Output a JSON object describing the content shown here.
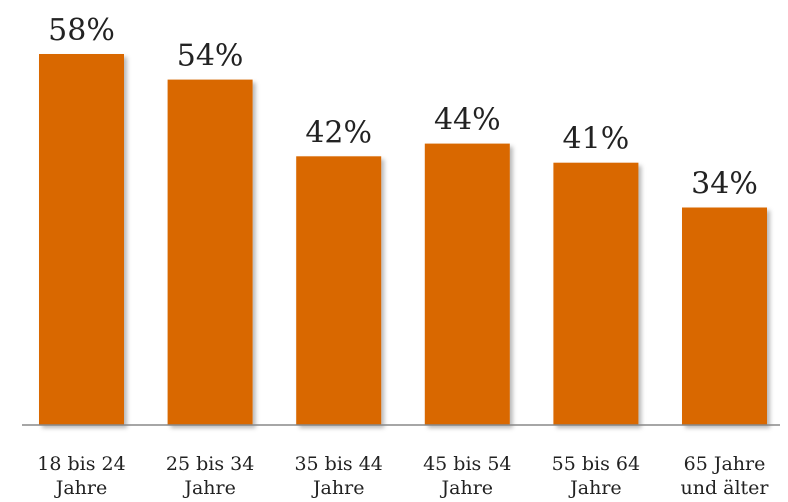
{
  "chart_data": {
    "type": "bar",
    "categories": [
      [
        "18 bis 24",
        "Jahre"
      ],
      [
        "25 bis 34",
        "Jahre"
      ],
      [
        "35 bis 44",
        "Jahre"
      ],
      [
        "45 bis 54",
        "Jahre"
      ],
      [
        "55 bis 64",
        "Jahre"
      ],
      [
        "65 Jahre",
        "und älter"
      ]
    ],
    "values": [
      58,
      54,
      42,
      44,
      41,
      34
    ],
    "value_labels": [
      "58%",
      "54%",
      "42%",
      "44%",
      "41%",
      "34%"
    ],
    "title": "",
    "xlabel": "",
    "ylabel": "",
    "ylim": [
      0,
      58
    ],
    "grid": false,
    "legend": "none",
    "bar_color": "#D96800",
    "axis_color": "#888888"
  }
}
